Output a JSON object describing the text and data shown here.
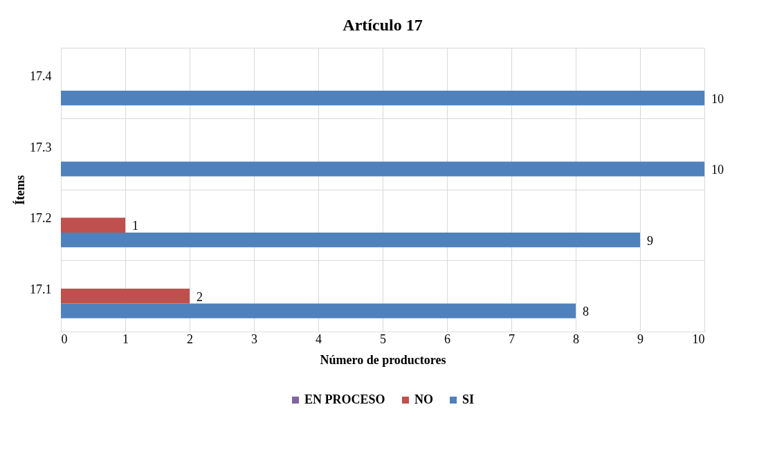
{
  "chart_data": {
    "type": "bar",
    "orientation": "horizontal",
    "title": "Artículo 17",
    "xlabel": "Número de productores",
    "ylabel": "Ítems",
    "categories": [
      "17.4",
      "17.3",
      "17.2",
      "17.1"
    ],
    "series": [
      {
        "name": "EN PROCESO",
        "color": "#8064a2",
        "values": [
          null,
          null,
          null,
          null
        ]
      },
      {
        "name": "NO",
        "color": "#c0504d",
        "values": [
          null,
          null,
          1,
          2
        ]
      },
      {
        "name": "SI",
        "color": "#4f81bd",
        "values": [
          10,
          10,
          9,
          8
        ]
      }
    ],
    "xlim": [
      0,
      10
    ],
    "xticks": [
      0,
      1,
      2,
      3,
      4,
      5,
      6,
      7,
      8,
      9,
      10
    ],
    "grid": true,
    "legend": "bottom",
    "data_labels": true
  }
}
